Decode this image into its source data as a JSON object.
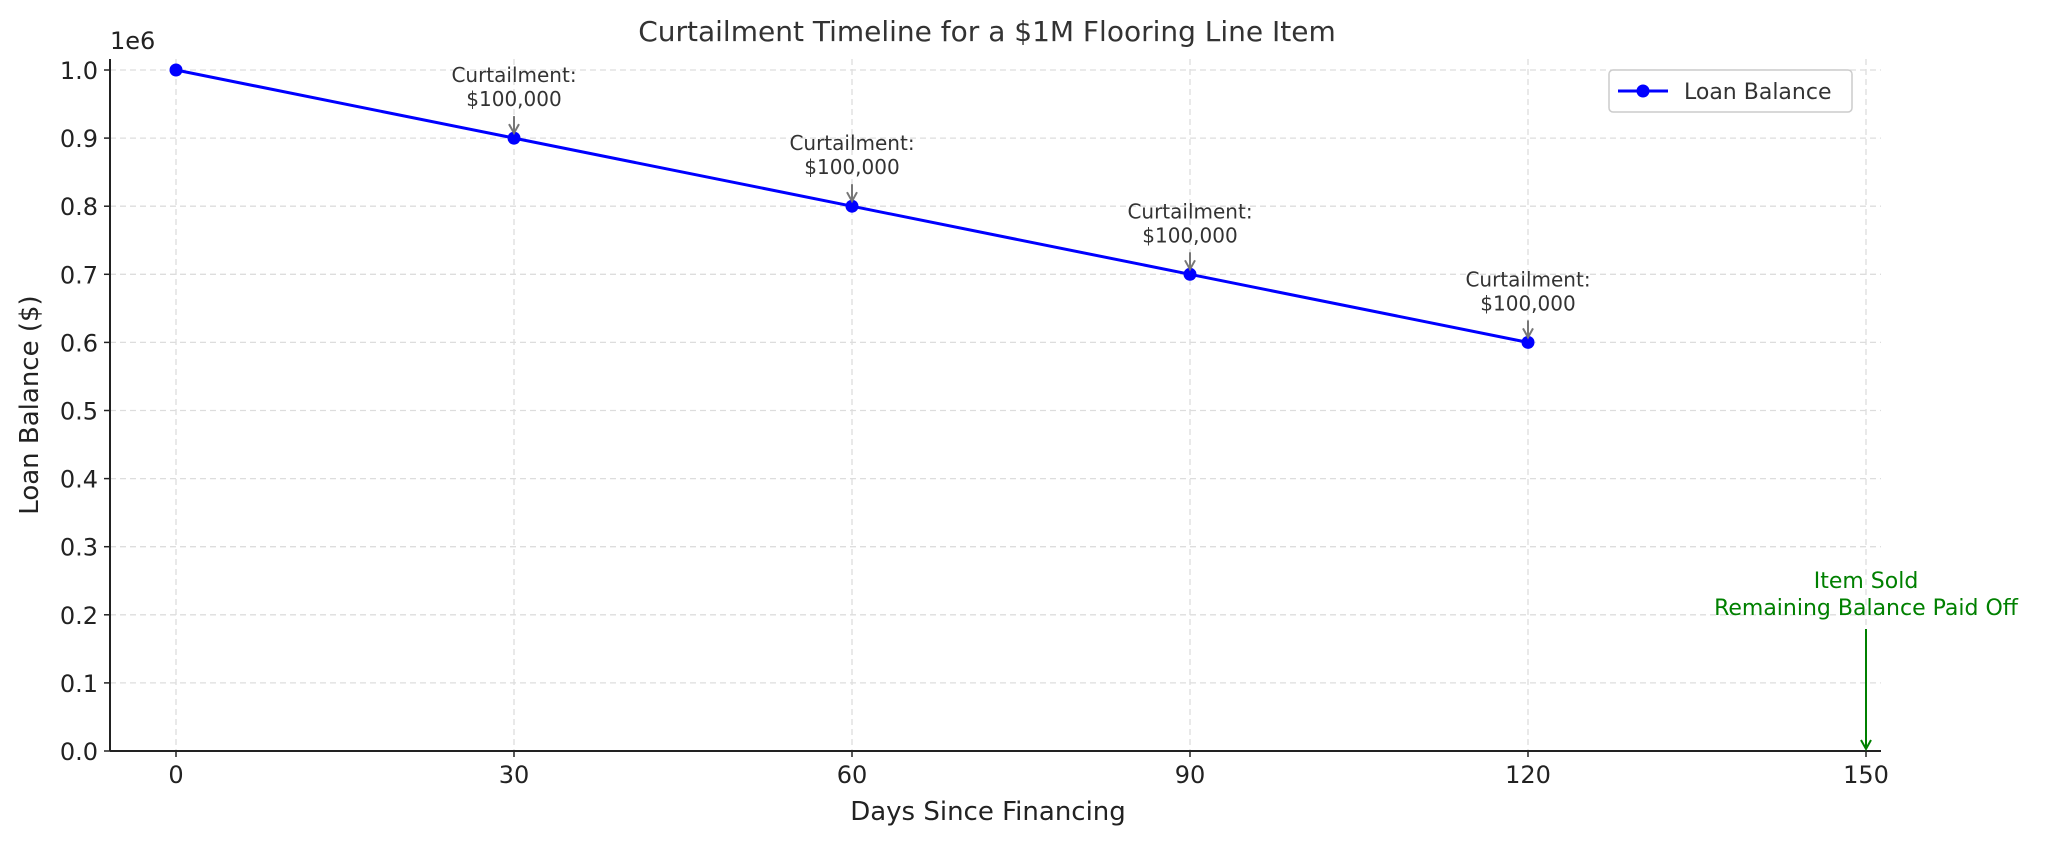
{
  "chart_data": {
    "type": "line",
    "title": "Curtailment Timeline for a $1M Flooring Line Item",
    "xlabel": "Days Since Financing",
    "ylabel": "Loan Balance ($)",
    "y_offset_label": "1e6",
    "xlim": [
      -5,
      155
    ],
    "ylim": [
      0,
      1020000
    ],
    "x_ticks": [
      0,
      30,
      60,
      90,
      120,
      150
    ],
    "x_tick_labels": [
      "0",
      "30",
      "60",
      "90",
      "120",
      "150"
    ],
    "y_ticks": [
      0,
      100000,
      200000,
      300000,
      400000,
      500000,
      600000,
      700000,
      800000,
      900000,
      1000000
    ],
    "y_tick_labels": [
      "0.0",
      "0.1",
      "0.2",
      "0.3",
      "0.4",
      "0.5",
      "0.6",
      "0.7",
      "0.8",
      "0.9",
      "1.0"
    ],
    "grid": true,
    "legend_position": "top-right",
    "series": [
      {
        "name": "Loan Balance",
        "color": "#0000ff",
        "marker": "circle",
        "x": [
          0,
          30,
          60,
          90,
          120
        ],
        "y": [
          1000000,
          900000,
          800000,
          700000,
          600000
        ]
      }
    ],
    "annotations": [
      {
        "x": 30,
        "y": 900000,
        "lines": [
          "Curtailment:",
          "$100,000"
        ]
      },
      {
        "x": 60,
        "y": 800000,
        "lines": [
          "Curtailment:",
          "$100,000"
        ]
      },
      {
        "x": 90,
        "y": 700000,
        "lines": [
          "Curtailment:",
          "$100,000"
        ]
      },
      {
        "x": 120,
        "y": 600000,
        "lines": [
          "Curtailment:",
          "$100,000"
        ]
      }
    ],
    "final_annotation": {
      "x": 150,
      "y": 0,
      "lines": [
        "Item Sold",
        "Remaining Balance Paid Off"
      ],
      "color": "#008000"
    }
  }
}
